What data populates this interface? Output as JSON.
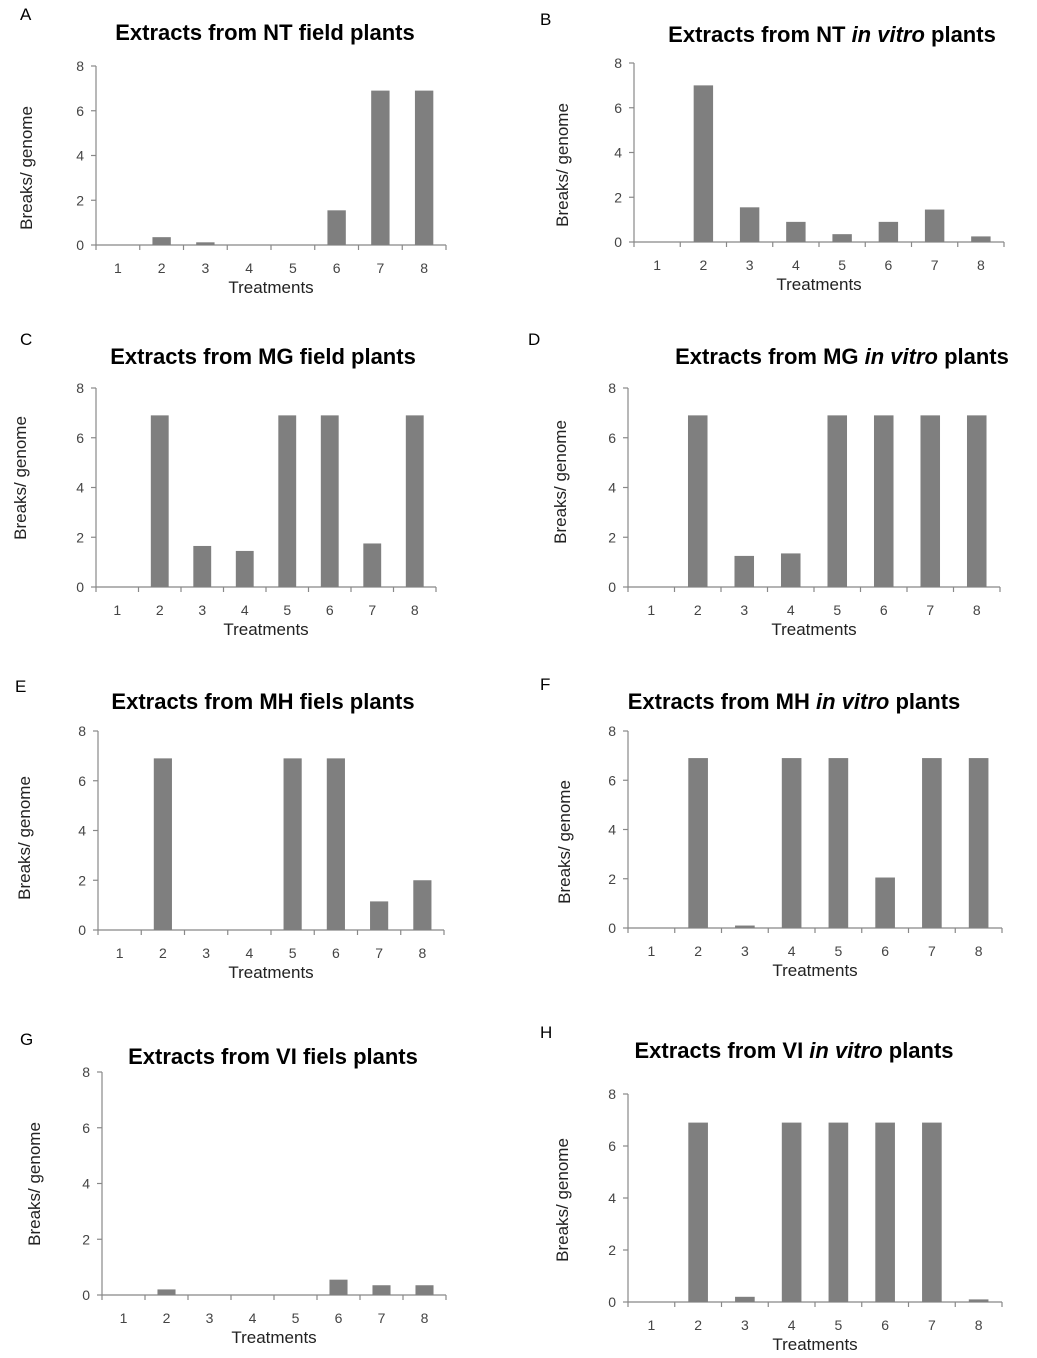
{
  "chart_data": [
    {
      "panel": "A",
      "type": "bar",
      "title": "Extracts from NT field plants",
      "title_italic": "",
      "categories": [
        "1",
        "2",
        "3",
        "4",
        "5",
        "6",
        "7",
        "8"
      ],
      "values": [
        0,
        0.35,
        0.12,
        0,
        0,
        1.55,
        6.9,
        6.9
      ],
      "xlabel": "Treatments",
      "ylabel": "Breaks/ genome",
      "ylim": [
        0,
        8
      ],
      "yticks": [
        0,
        2,
        4,
        6,
        8
      ],
      "grid": false,
      "bar_color": "#7f7f7f"
    },
    {
      "panel": "B",
      "type": "bar",
      "title": "Extracts from NT in vitro plants",
      "title_italic": "in vitro",
      "categories": [
        "1",
        "2",
        "3",
        "4",
        "5",
        "6",
        "7",
        "8"
      ],
      "values": [
        0,
        7.0,
        1.55,
        0.9,
        0.35,
        0.9,
        1.45,
        0.25
      ],
      "xlabel": "Treatments",
      "ylabel": "Breaks/ genome",
      "ylim": [
        0,
        8
      ],
      "yticks": [
        0,
        2,
        4,
        6,
        8
      ],
      "grid": false,
      "bar_color": "#7f7f7f"
    },
    {
      "panel": "C",
      "type": "bar",
      "title": "Extracts from MG field plants",
      "title_italic": "",
      "categories": [
        "1",
        "2",
        "3",
        "4",
        "5",
        "6",
        "7",
        "8"
      ],
      "values": [
        0,
        6.9,
        1.65,
        1.45,
        6.9,
        6.9,
        1.75,
        6.9
      ],
      "xlabel": "Treatments",
      "ylabel": "Breaks/ genome",
      "ylim": [
        0,
        8
      ],
      "yticks": [
        0,
        2,
        4,
        6,
        8
      ],
      "grid": false,
      "bar_color": "#7f7f7f"
    },
    {
      "panel": "D",
      "type": "bar",
      "title": "Extracts from MG  in vitro plants",
      "title_italic": "in vitro",
      "categories": [
        "1",
        "2",
        "3",
        "4",
        "5",
        "6",
        "7",
        "8"
      ],
      "values": [
        0,
        6.9,
        1.25,
        1.35,
        6.9,
        6.9,
        6.9,
        6.9
      ],
      "xlabel": "Treatments",
      "ylabel": "Breaks/ genome",
      "ylim": [
        0,
        8
      ],
      "yticks": [
        0,
        2,
        4,
        6,
        8
      ],
      "grid": false,
      "bar_color": "#7f7f7f"
    },
    {
      "panel": "E",
      "type": "bar",
      "title": "Extracts from MH fiels plants",
      "title_italic": "",
      "categories": [
        "1",
        "2",
        "3",
        "4",
        "5",
        "6",
        "7",
        "8"
      ],
      "values": [
        0,
        6.9,
        0,
        0,
        6.9,
        6.9,
        1.15,
        2.0
      ],
      "xlabel": "Treatments",
      "ylabel": "Breaks/ genome",
      "ylim": [
        0,
        8
      ],
      "yticks": [
        0,
        2,
        4,
        6,
        8
      ],
      "grid": false,
      "bar_color": "#7f7f7f"
    },
    {
      "panel": "F",
      "type": "bar",
      "title": "Extracts from MH in vitro plants",
      "title_italic": "in vitro",
      "categories": [
        "1",
        "2",
        "3",
        "4",
        "5",
        "6",
        "7",
        "8"
      ],
      "values": [
        0,
        6.9,
        0.1,
        6.9,
        6.9,
        2.05,
        6.9,
        6.9
      ],
      "xlabel": "Treatments",
      "ylabel": "Breaks/ genome",
      "ylim": [
        0,
        8
      ],
      "yticks": [
        0,
        2,
        4,
        6,
        8
      ],
      "grid": false,
      "bar_color": "#7f7f7f"
    },
    {
      "panel": "G",
      "type": "bar",
      "title": "Extracts from VI fiels plants",
      "title_italic": "",
      "categories": [
        "1",
        "2",
        "3",
        "4",
        "5",
        "6",
        "7",
        "8"
      ],
      "values": [
        0,
        0.2,
        0,
        0,
        0,
        0.55,
        0.35,
        0.35
      ],
      "xlabel": "Treatments",
      "ylabel": "Breaks/ genome",
      "ylim": [
        0,
        8
      ],
      "yticks": [
        0,
        2,
        4,
        6,
        8
      ],
      "grid": false,
      "bar_color": "#7f7f7f"
    },
    {
      "panel": "H",
      "type": "bar",
      "title": "Extracts from VI in vitro plants",
      "title_italic": "in vitro",
      "categories": [
        "1",
        "2",
        "3",
        "4",
        "5",
        "6",
        "7",
        "8"
      ],
      "values": [
        0,
        6.9,
        0.2,
        6.9,
        6.9,
        6.9,
        6.9,
        0.1
      ],
      "xlabel": "Treatments",
      "ylabel": "Breaks/ genome",
      "ylim": [
        0,
        8
      ],
      "yticks": [
        0,
        2,
        4,
        6,
        8
      ],
      "grid": false,
      "bar_color": "#7f7f7f"
    }
  ]
}
